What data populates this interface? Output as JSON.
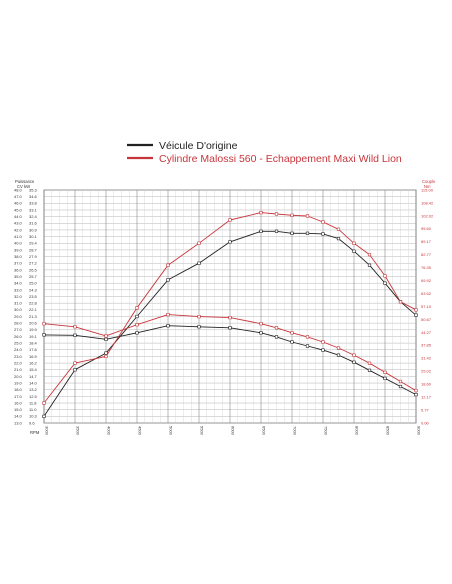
{
  "chart_data": {
    "type": "line",
    "title": "",
    "legend": {
      "placement": "top",
      "entries": [
        {
          "label": "Véicule D'origine",
          "color": "#222222"
        },
        {
          "label": "Cylindre Malossi 560 - Echappement Maxi Wild Lion",
          "color": "#c8363c"
        }
      ]
    },
    "axes": {
      "left_header_1": "Puissance",
      "left_header_2": "CV   kW",
      "right_header_1": "Couple",
      "right_header_2": "Nm",
      "x_unit": "RPM",
      "x_ticks": [
        "3000",
        "3500",
        "4000",
        "4500",
        "5000",
        "5500",
        "6000",
        "6500",
        "7000",
        "7500",
        "8000",
        "8500",
        "9000"
      ],
      "x_range": [
        3000,
        9000
      ],
      "left_cv_ticks": [
        "48.0",
        "47.0",
        "46.0",
        "45.0",
        "44.0",
        "43.0",
        "42.0",
        "41.0",
        "40.0",
        "39.0",
        "38.0",
        "37.0",
        "36.0",
        "35.0",
        "34.0",
        "33.0",
        "32.0",
        "31.0",
        "30.0",
        "29.0",
        "28.0",
        "27.0",
        "26.0",
        "25.0",
        "24.0",
        "23.0",
        "22.0",
        "21.0",
        "20.0",
        "19.0",
        "18.0",
        "17.0",
        "16.0",
        "15.0",
        "14.0",
        "13.0"
      ],
      "left_kw_ticks": [
        "35.3",
        "34.6",
        "33.8",
        "33.1",
        "32.4",
        "31.6",
        "30.9",
        "30.1",
        "29.4",
        "28.7",
        "27.9",
        "27.2",
        "26.5",
        "25.7",
        "25.0",
        "24.3",
        "23.5",
        "22.8",
        "22.1",
        "21.3",
        "20.6",
        "19.9",
        "19.1",
        "18.4",
        "17.6",
        "16.9",
        "16.2",
        "15.4",
        "14.7",
        "14.0",
        "13.2",
        "12.5",
        "11.8",
        "11.0",
        "10.3",
        "9.6"
      ],
      "left_range": [
        13.0,
        48.0
      ],
      "right_ticks": [
        "115.00",
        "108.42",
        "102.02",
        "95.60",
        "89.17",
        "82.77",
        "76.35",
        "69.92",
        "63.52",
        "57.10",
        "50.67",
        "44.27",
        "37.85",
        "31.42",
        "25.02",
        "18.60",
        "12.17",
        "5.77",
        "0.00"
      ],
      "right_range": [
        0,
        115
      ],
      "grid": true
    },
    "series": [
      {
        "name": "Véicule D'origine",
        "measure": "power",
        "color": "#222222",
        "x": [
          3000,
          3500,
          4000,
          4500,
          5000,
          5500,
          6000,
          6500,
          6750,
          7000,
          7250,
          7500,
          7750,
          8000,
          8250,
          8500,
          8750,
          9000
        ],
        "y": [
          14.0,
          21.0,
          23.5,
          29.0,
          34.5,
          37.0,
          40.2,
          41.8,
          41.8,
          41.5,
          41.5,
          41.4,
          40.7,
          38.8,
          36.7,
          34.0,
          31.2,
          29.2
        ]
      },
      {
        "name": "Véicule D'origine",
        "measure": "torque",
        "color": "#222222",
        "x": [
          3000,
          3500,
          4000,
          4500,
          5000,
          5500,
          6000,
          6500,
          6750,
          7000,
          7250,
          7500,
          7750,
          8000,
          8250,
          8500,
          8750,
          9000
        ],
        "y": [
          43.5,
          43.3,
          41.3,
          44.5,
          48.0,
          47.5,
          47.0,
          44.5,
          42.5,
          40.0,
          38.0,
          36.0,
          33.5,
          30.0,
          26.0,
          22.0,
          18.0,
          14.0
        ]
      },
      {
        "name": "Cylindre Malossi 560 - Echappement Maxi Wild Lion",
        "measure": "power",
        "color": "#c8363c",
        "x": [
          3000,
          3500,
          4000,
          4500,
          5000,
          5500,
          6000,
          6500,
          6750,
          7000,
          7250,
          7500,
          7750,
          8000,
          8250,
          8500,
          8750,
          9000
        ],
        "y": [
          16.0,
          22.0,
          23.0,
          30.3,
          36.7,
          40.0,
          43.5,
          44.6,
          44.4,
          44.2,
          44.1,
          43.2,
          42.1,
          40.0,
          38.3,
          35.1,
          31.2,
          30.0
        ]
      },
      {
        "name": "Cylindre Malossi 560 - Echappement Maxi Wild Lion",
        "measure": "torque",
        "color": "#c8363c",
        "x": [
          3000,
          3500,
          4000,
          4500,
          5000,
          5500,
          6000,
          6500,
          6750,
          7000,
          7250,
          7500,
          7750,
          8000,
          8250,
          8500,
          8750,
          9000
        ],
        "y": [
          49.0,
          47.5,
          43.0,
          48.5,
          53.5,
          52.5,
          52.0,
          49.0,
          47.0,
          44.5,
          42.5,
          40.0,
          37.0,
          33.5,
          29.5,
          25.0,
          20.5,
          16.0
        ]
      }
    ]
  }
}
